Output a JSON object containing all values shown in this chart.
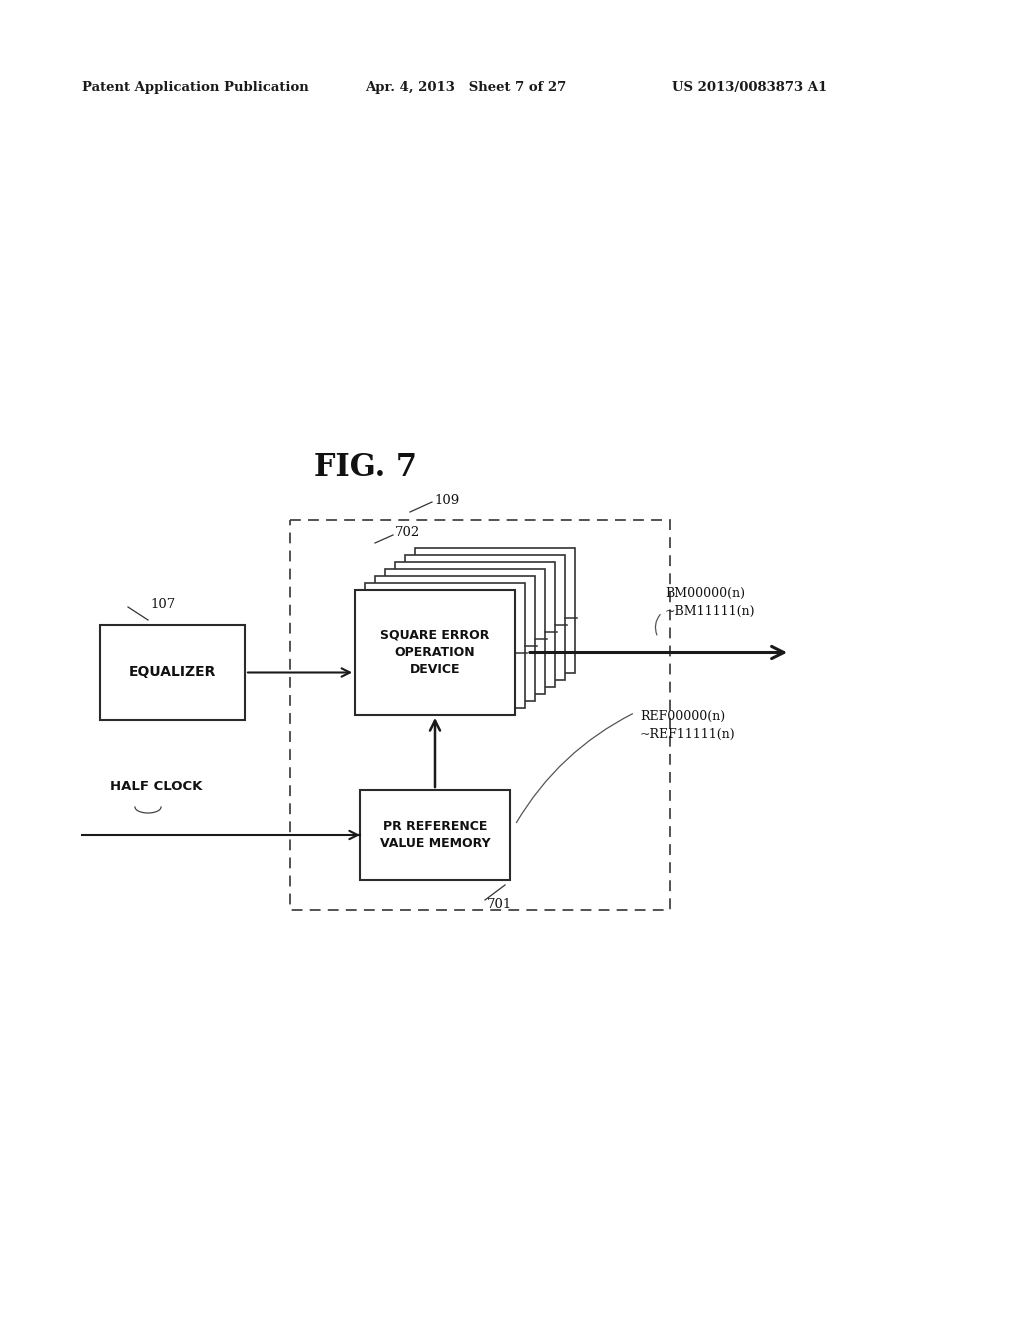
{
  "bg_color": "#ffffff",
  "header_left": "Patent Application Publication",
  "header_center": "Apr. 4, 2013   Sheet 7 of 27",
  "header_right": "US 2013/0083873 A1",
  "fig_label": "FIG. 7",
  "equalizer_label": "EQUALIZER",
  "equalizer_ref": "107",
  "square_error_label": "SQUARE ERROR\nOPERATION\nDEVICE",
  "square_error_ref": "702",
  "pr_ref_label": "PR REFERENCE\nVALUE MEMORY",
  "pr_ref_num": "701",
  "dashed_box_ref": "109",
  "half_clock_label": "HALF CLOCK",
  "bm_label": "BM00000(n)\n~BM11111(n)",
  "ref_label": "REF00000(n)\n~REF11111(n)"
}
